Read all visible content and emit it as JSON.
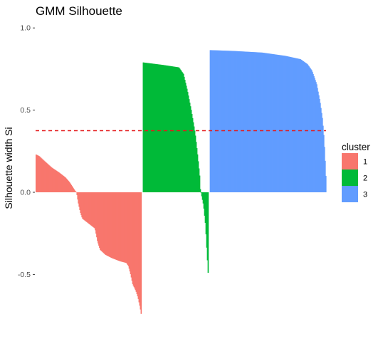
{
  "chart_data": {
    "type": "area",
    "title": "GMM Silhouette",
    "xlabel": "",
    "ylabel": "Silhouette width Si",
    "ylim": [
      -0.78,
      1.04
    ],
    "yticks": [
      -0.5,
      0.0,
      0.5,
      1.0
    ],
    "ytick_labels": [
      "-0.5",
      "0.0",
      "0.5",
      "1.0"
    ],
    "grid": false,
    "average_silhouette": 0.375,
    "reference_line_color": "#e41a1c",
    "legend": {
      "title": "cluster",
      "position": "right",
      "entries": [
        "1",
        "2",
        "3"
      ]
    },
    "colors": {
      "1": "#F8766D",
      "2": "#00BA38",
      "3": "#619CFF"
    },
    "series": [
      {
        "cluster": "1",
        "n": 150,
        "profile": [
          [
            0.0,
            0.23
          ],
          [
            0.03,
            0.22
          ],
          [
            0.08,
            0.19
          ],
          [
            0.15,
            0.15
          ],
          [
            0.22,
            0.12
          ],
          [
            0.28,
            0.09
          ],
          [
            0.32,
            0.06
          ],
          [
            0.35,
            0.03
          ],
          [
            0.37,
            0.01
          ],
          [
            0.385,
            0.0
          ],
          [
            0.39,
            -0.02
          ],
          [
            0.4,
            -0.06
          ],
          [
            0.42,
            -0.12
          ],
          [
            0.44,
            -0.16
          ],
          [
            0.48,
            -0.18
          ],
          [
            0.52,
            -0.2
          ],
          [
            0.56,
            -0.22
          ],
          [
            0.57,
            -0.25
          ],
          [
            0.585,
            -0.3
          ],
          [
            0.61,
            -0.35
          ],
          [
            0.66,
            -0.38
          ],
          [
            0.72,
            -0.4
          ],
          [
            0.8,
            -0.42
          ],
          [
            0.86,
            -0.43
          ],
          [
            0.88,
            -0.45
          ],
          [
            0.9,
            -0.5
          ],
          [
            0.92,
            -0.56
          ],
          [
            0.95,
            -0.6
          ],
          [
            0.97,
            -0.64
          ],
          [
            0.99,
            -0.7
          ],
          [
            1.0,
            -0.74
          ]
        ]
      },
      {
        "cluster": "2",
        "n": 93,
        "profile": [
          [
            0.0,
            0.79
          ],
          [
            0.1,
            0.785
          ],
          [
            0.3,
            0.775
          ],
          [
            0.55,
            0.76
          ],
          [
            0.62,
            0.72
          ],
          [
            0.68,
            0.62
          ],
          [
            0.74,
            0.5
          ],
          [
            0.8,
            0.36
          ],
          [
            0.84,
            0.22
          ],
          [
            0.87,
            0.1
          ],
          [
            0.88,
            0.02
          ],
          [
            0.89,
            0.0
          ],
          [
            0.9,
            -0.02
          ],
          [
            0.93,
            -0.08
          ],
          [
            0.96,
            -0.2
          ],
          [
            0.98,
            -0.35
          ],
          [
            1.0,
            -0.49
          ]
        ]
      },
      {
        "cluster": "3",
        "n": 165,
        "profile": [
          [
            0.0,
            0.865
          ],
          [
            0.2,
            0.86
          ],
          [
            0.45,
            0.85
          ],
          [
            0.65,
            0.83
          ],
          [
            0.78,
            0.81
          ],
          [
            0.84,
            0.78
          ],
          [
            0.88,
            0.74
          ],
          [
            0.92,
            0.66
          ],
          [
            0.95,
            0.55
          ],
          [
            0.97,
            0.45
          ],
          [
            0.98,
            0.37
          ],
          [
            0.99,
            0.25
          ],
          [
            1.0,
            0.1
          ]
        ]
      }
    ]
  }
}
